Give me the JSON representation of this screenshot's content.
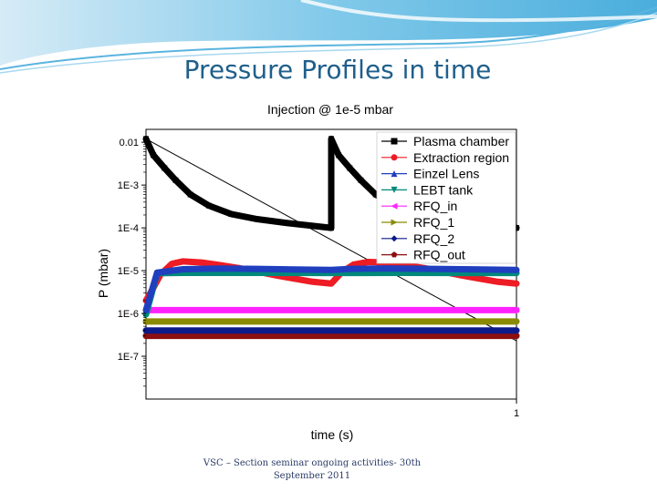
{
  "slide": {
    "title": "Pressure Profiles in time",
    "footer_line1": "VSC – Section seminar ongoing activities- 30th",
    "footer_line2": "September 2011",
    "accent": "#1f5f8b"
  },
  "chart_data": {
    "type": "line",
    "title": "Injection @ 1e-5 mbar",
    "xlabel": "time (s)",
    "ylabel": "P (mbar)",
    "yscale": "log",
    "ylim": [
      1e-08,
      0.02
    ],
    "xlim": [
      0,
      1
    ],
    "y_ticks": [
      {
        "value": 0.01,
        "label": "0.01"
      },
      {
        "value": 0.001,
        "label": "1E-3"
      },
      {
        "value": 0.0001,
        "label": "1E-4"
      },
      {
        "value": 1e-05,
        "label": "1E-5"
      },
      {
        "value": 1e-06,
        "label": "1E-6"
      },
      {
        "value": 1e-07,
        "label": "1E-7"
      }
    ],
    "x_ticks": [
      {
        "value": 1,
        "label": "1"
      }
    ],
    "grid": false,
    "legend_position": "top-right",
    "series": [
      {
        "name": "Plasma chamber",
        "color": "#000000",
        "marker": "square",
        "points": [
          [
            0,
            0.012
          ],
          [
            0.02,
            0.005
          ],
          [
            0.05,
            0.0025
          ],
          [
            0.08,
            0.0013
          ],
          [
            0.12,
            0.0006
          ],
          [
            0.17,
            0.00033
          ],
          [
            0.23,
            0.00021
          ],
          [
            0.3,
            0.00016
          ],
          [
            0.38,
            0.00013
          ],
          [
            0.5,
            0.0001
          ],
          [
            0.5,
            0.012
          ],
          [
            0.52,
            0.005
          ],
          [
            0.55,
            0.0025
          ],
          [
            0.58,
            0.0013
          ],
          [
            0.62,
            0.0006
          ],
          [
            0.67,
            0.00033
          ],
          [
            0.73,
            0.00021
          ],
          [
            0.8,
            0.00016
          ],
          [
            0.88,
            0.00013
          ],
          [
            1.0,
            0.0001
          ]
        ]
      },
      {
        "name": "Extraction region",
        "color": "#ee1c24",
        "marker": "circle",
        "points": [
          [
            0,
            2e-06
          ],
          [
            0.02,
            4e-06
          ],
          [
            0.04,
            8.3e-06
          ],
          [
            0.07,
            1.45e-05
          ],
          [
            0.1,
            1.65e-05
          ],
          [
            0.15,
            1.55e-05
          ],
          [
            0.2,
            1.35e-05
          ],
          [
            0.25,
            1.15e-05
          ],
          [
            0.3,
            9.5e-06
          ],
          [
            0.35,
            7.8e-06
          ],
          [
            0.4,
            6.5e-06
          ],
          [
            0.45,
            5.5e-06
          ],
          [
            0.5,
            5e-06
          ],
          [
            0.51,
            6.2e-06
          ],
          [
            0.53,
            9.5e-06
          ],
          [
            0.56,
            1.38e-05
          ],
          [
            0.6,
            1.6e-05
          ],
          [
            0.65,
            1.55e-05
          ],
          [
            0.7,
            1.35e-05
          ],
          [
            0.75,
            1.15e-05
          ],
          [
            0.8,
            9.5e-06
          ],
          [
            0.85,
            7.8e-06
          ],
          [
            0.9,
            6.5e-06
          ],
          [
            0.95,
            5.5e-06
          ],
          [
            1.0,
            5e-06
          ]
        ]
      },
      {
        "name": "Einzel Lens",
        "color": "#1f3fbf",
        "marker": "triangle-up",
        "points": [
          [
            0,
            1.2e-06
          ],
          [
            0.03,
            9e-06
          ],
          [
            0.1,
            1.08e-05
          ],
          [
            0.2,
            1.12e-05
          ],
          [
            0.3,
            1.1e-05
          ],
          [
            0.4,
            1.07e-05
          ],
          [
            0.5,
            1.04e-05
          ],
          [
            0.55,
            1.1e-05
          ],
          [
            0.65,
            1.13e-05
          ],
          [
            0.75,
            1.11e-05
          ],
          [
            0.85,
            1.08e-05
          ],
          [
            1.0,
            1.04e-05
          ]
        ]
      },
      {
        "name": "LEBT tank",
        "color": "#00897b",
        "marker": "triangle-down",
        "points": [
          [
            0,
            9.5e-07
          ],
          [
            0.03,
            8.7e-06
          ],
          [
            0.1,
            8.9e-06
          ],
          [
            0.3,
            8.9e-06
          ],
          [
            0.5,
            8.8e-06
          ],
          [
            0.7,
            8.9e-06
          ],
          [
            1.0,
            8.8e-06
          ]
        ]
      },
      {
        "name": "RFQ_in",
        "color": "#ff22ff",
        "marker": "triangle-left",
        "points": [
          [
            0,
            1.2e-06
          ],
          [
            1.0,
            1.2e-06
          ]
        ]
      },
      {
        "name": "RFQ_1",
        "color": "#8a8a00",
        "marker": "triangle-right",
        "points": [
          [
            0,
            6.5e-07
          ],
          [
            1.0,
            6.5e-07
          ]
        ]
      },
      {
        "name": "RFQ_2",
        "color": "#0d1a8a",
        "marker": "diamond",
        "points": [
          [
            0,
            4e-07
          ],
          [
            1.0,
            4e-07
          ]
        ]
      },
      {
        "name": "RFQ_out",
        "color": "#8b0f0f",
        "marker": "pentagon",
        "points": [
          [
            0,
            3e-07
          ],
          [
            1.0,
            3e-07
          ]
        ]
      }
    ],
    "reference_line": {
      "color": "#000000",
      "points": [
        [
          0,
          0.012
        ],
        [
          1.0,
          2.3e-07
        ]
      ]
    }
  }
}
